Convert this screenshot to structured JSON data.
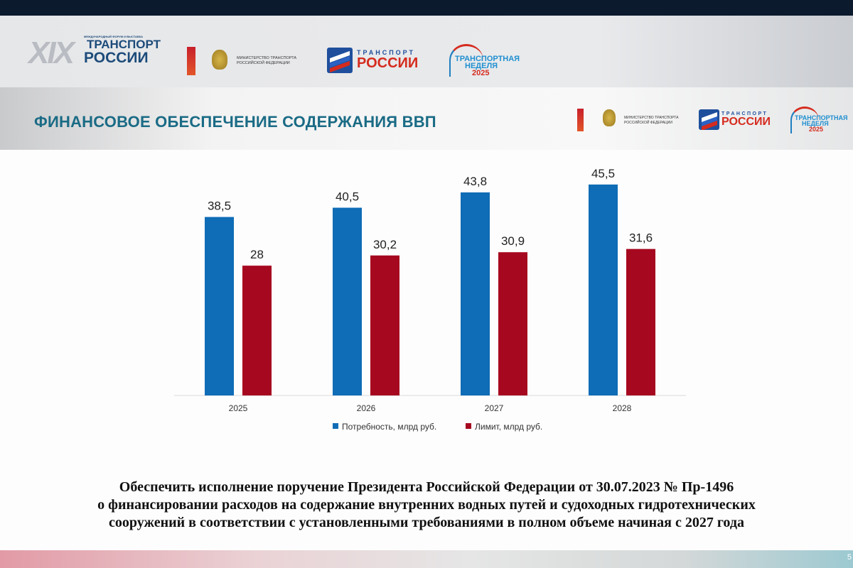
{
  "header": {
    "logos": [
      {
        "name": "forum-logo",
        "text": "XIX ТРАНСПОРТ РОССИИ",
        "subtext": "МЕЖДУНАРОДНЫЙ ФОРУМ И ВЫСТАВКА"
      },
      {
        "name": "ministry-logo",
        "text": "МИНИСТЕРСТВО ТРАНСПОРТА РОССИЙСКОЙ ФЕДЕРАЦИИ"
      },
      {
        "name": "transport-russia-logo",
        "text": "ТРАНСПОРТ РОССИИ"
      },
      {
        "name": "transport-week-logo",
        "text": "ТРАНСПОРТНАЯ НЕДЕЛЯ 2025"
      }
    ]
  },
  "slide": {
    "title": "ФИНАНСОВОЕ ОБЕСПЕЧЕНИЕ СОДЕРЖАНИЯ ВВП",
    "bottom_text": [
      "Обеспечить исполнение поручение Президента Российской Федерации от 30.07.2023 № Пр-1496",
      "о финансировании расходов на содержание внутренних водных путей и судоходных гидротехнических",
      "сооружений в соответствии с установленными требованиями в полном объеме начиная с 2027 года"
    ],
    "page_number": "5"
  },
  "chart_data": {
    "type": "bar",
    "categories": [
      "2025",
      "2026",
      "2027",
      "2028"
    ],
    "series": [
      {
        "name": "Потребность, млрд руб.",
        "values": [
          38.5,
          40.5,
          43.8,
          45.5
        ],
        "labels": [
          "38,5",
          "40,5",
          "43,8",
          "45,5"
        ],
        "color": "#0f6cb6"
      },
      {
        "name": "Лимит, млрд руб.",
        "values": [
          28,
          30.2,
          30.9,
          31.6
        ],
        "labels": [
          "28",
          "30,2",
          "30,9",
          "31,6"
        ],
        "color": "#a6081f"
      }
    ],
    "ylim": [
      0,
      50
    ],
    "grid": false,
    "legend": "bottom"
  }
}
